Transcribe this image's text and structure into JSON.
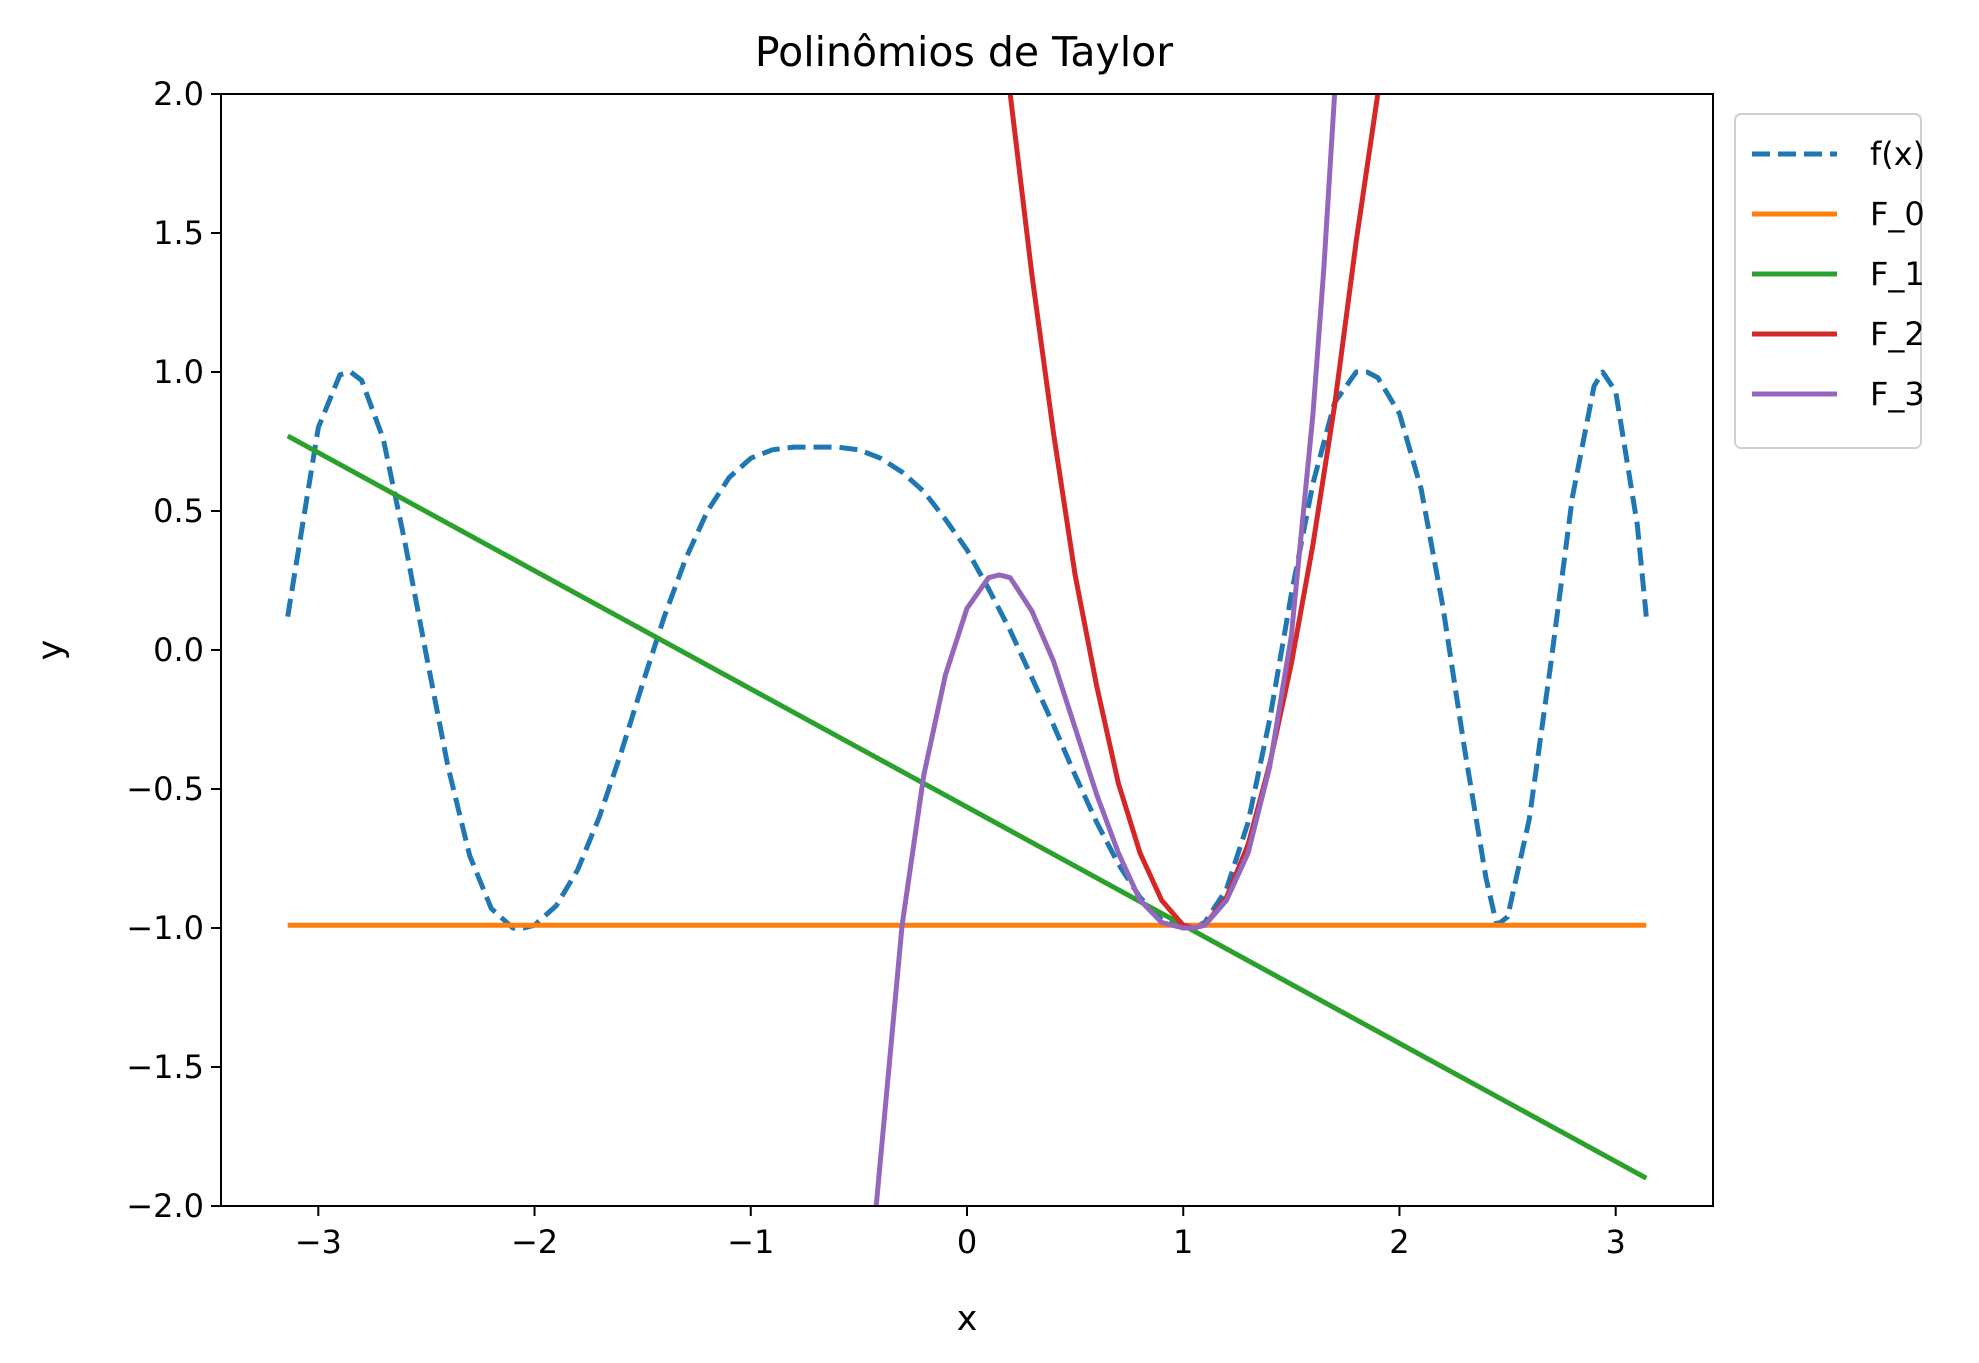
{
  "chart_data": {
    "type": "line",
    "title": "Polinômios de Taylor",
    "xlabel": "x",
    "ylabel": "y",
    "xlim": [
      -3.45,
      3.45
    ],
    "ylim": [
      -2.0,
      2.0
    ],
    "x_ticks": [
      -3,
      -2,
      -1,
      0,
      1,
      2,
      3
    ],
    "x_tick_labels": [
      "−3",
      "−2",
      "−1",
      "0",
      "1",
      "2",
      "3"
    ],
    "y_ticks": [
      -2.0,
      -1.5,
      -1.0,
      -0.5,
      0.0,
      0.5,
      1.0,
      1.5,
      2.0
    ],
    "y_tick_labels": [
      "−2.0",
      "−1.5",
      "−1.0",
      "−0.5",
      "0.0",
      "0.5",
      "1.0",
      "1.5",
      "2.0"
    ],
    "grid": false,
    "legend_position": "outside top-right",
    "series": [
      {
        "name": "f(x)",
        "color": "#1f77b4",
        "style": "dashed",
        "x": [
          -3.1416,
          -3.0,
          -2.9,
          -2.85,
          -2.8,
          -2.7,
          -2.6,
          -2.5,
          -2.4,
          -2.3,
          -2.2,
          -2.1,
          -2.05,
          -2.0,
          -1.9,
          -1.8,
          -1.7,
          -1.6,
          -1.5,
          -1.4,
          -1.3,
          -1.2,
          -1.1,
          -1.0,
          -0.9,
          -0.8,
          -0.7,
          -0.6,
          -0.5,
          -0.4,
          -0.3,
          -0.2,
          -0.1,
          0.0,
          0.1,
          0.2,
          0.3,
          0.4,
          0.5,
          0.6,
          0.7,
          0.8,
          0.9,
          1.0,
          1.047,
          1.1,
          1.2,
          1.3,
          1.4,
          1.5,
          1.6,
          1.7,
          1.8,
          1.85,
          1.9,
          2.0,
          2.1,
          2.2,
          2.3,
          2.4,
          2.45,
          2.5,
          2.6,
          2.7,
          2.8,
          2.9,
          2.94,
          3.0,
          3.1,
          3.1416
        ],
        "y": [
          0.12,
          0.8,
          0.99,
          1.0,
          0.97,
          0.76,
          0.39,
          -0.02,
          -0.42,
          -0.74,
          -0.93,
          -1.0,
          -1.0,
          -0.99,
          -0.92,
          -0.79,
          -0.6,
          -0.37,
          -0.12,
          0.12,
          0.33,
          0.5,
          0.62,
          0.69,
          0.72,
          0.73,
          0.73,
          0.73,
          0.72,
          0.69,
          0.64,
          0.57,
          0.47,
          0.36,
          0.22,
          0.07,
          -0.1,
          -0.27,
          -0.45,
          -0.62,
          -0.77,
          -0.89,
          -0.97,
          -1.0,
          -1.0,
          -0.98,
          -0.86,
          -0.62,
          -0.25,
          0.2,
          0.6,
          0.89,
          1.0,
          1.0,
          0.98,
          0.85,
          0.58,
          0.16,
          -0.35,
          -0.82,
          -0.99,
          -0.96,
          -0.61,
          -0.05,
          0.55,
          0.95,
          1.0,
          0.93,
          0.45,
          0.12
        ]
      },
      {
        "name": "F_0",
        "color": "#ff7f0e",
        "style": "solid",
        "x": [
          -3.1416,
          3.1416
        ],
        "y": [
          -0.99,
          -0.99
        ]
      },
      {
        "name": "F_1",
        "color": "#2ca02c",
        "style": "solid",
        "x": [
          -3.1416,
          3.1416
        ],
        "y": [
          0.77,
          -1.9
        ]
      },
      {
        "name": "F_2",
        "color": "#d62728",
        "style": "solid",
        "x": [
          0.2,
          0.3,
          0.4,
          0.5,
          0.6,
          0.7,
          0.8,
          0.9,
          1.0,
          1.047,
          1.1,
          1.2,
          1.3,
          1.4,
          1.5,
          1.6,
          1.7,
          1.8,
          1.9,
          1.93
        ],
        "y": [
          2.0,
          1.35,
          0.78,
          0.27,
          -0.13,
          -0.48,
          -0.73,
          -0.9,
          -0.99,
          -1.0,
          -0.99,
          -0.89,
          -0.7,
          -0.41,
          -0.05,
          0.38,
          0.88,
          1.47,
          2.0,
          2.3
        ]
      },
      {
        "name": "F_3",
        "color": "#9467bd",
        "style": "solid",
        "x": [
          -0.42,
          -0.3,
          -0.2,
          -0.1,
          0.0,
          0.1,
          0.15,
          0.2,
          0.3,
          0.4,
          0.5,
          0.6,
          0.7,
          0.8,
          0.9,
          1.0,
          1.047,
          1.1,
          1.2,
          1.3,
          1.4,
          1.5,
          1.6,
          1.65,
          1.7
        ],
        "y": [
          -2.0,
          -0.99,
          -0.45,
          -0.09,
          0.15,
          0.26,
          0.27,
          0.26,
          0.14,
          -0.04,
          -0.28,
          -0.52,
          -0.73,
          -0.9,
          -0.98,
          -1.0,
          -1.0,
          -0.99,
          -0.9,
          -0.73,
          -0.42,
          0.05,
          0.85,
          1.37,
          2.0
        ]
      }
    ]
  }
}
